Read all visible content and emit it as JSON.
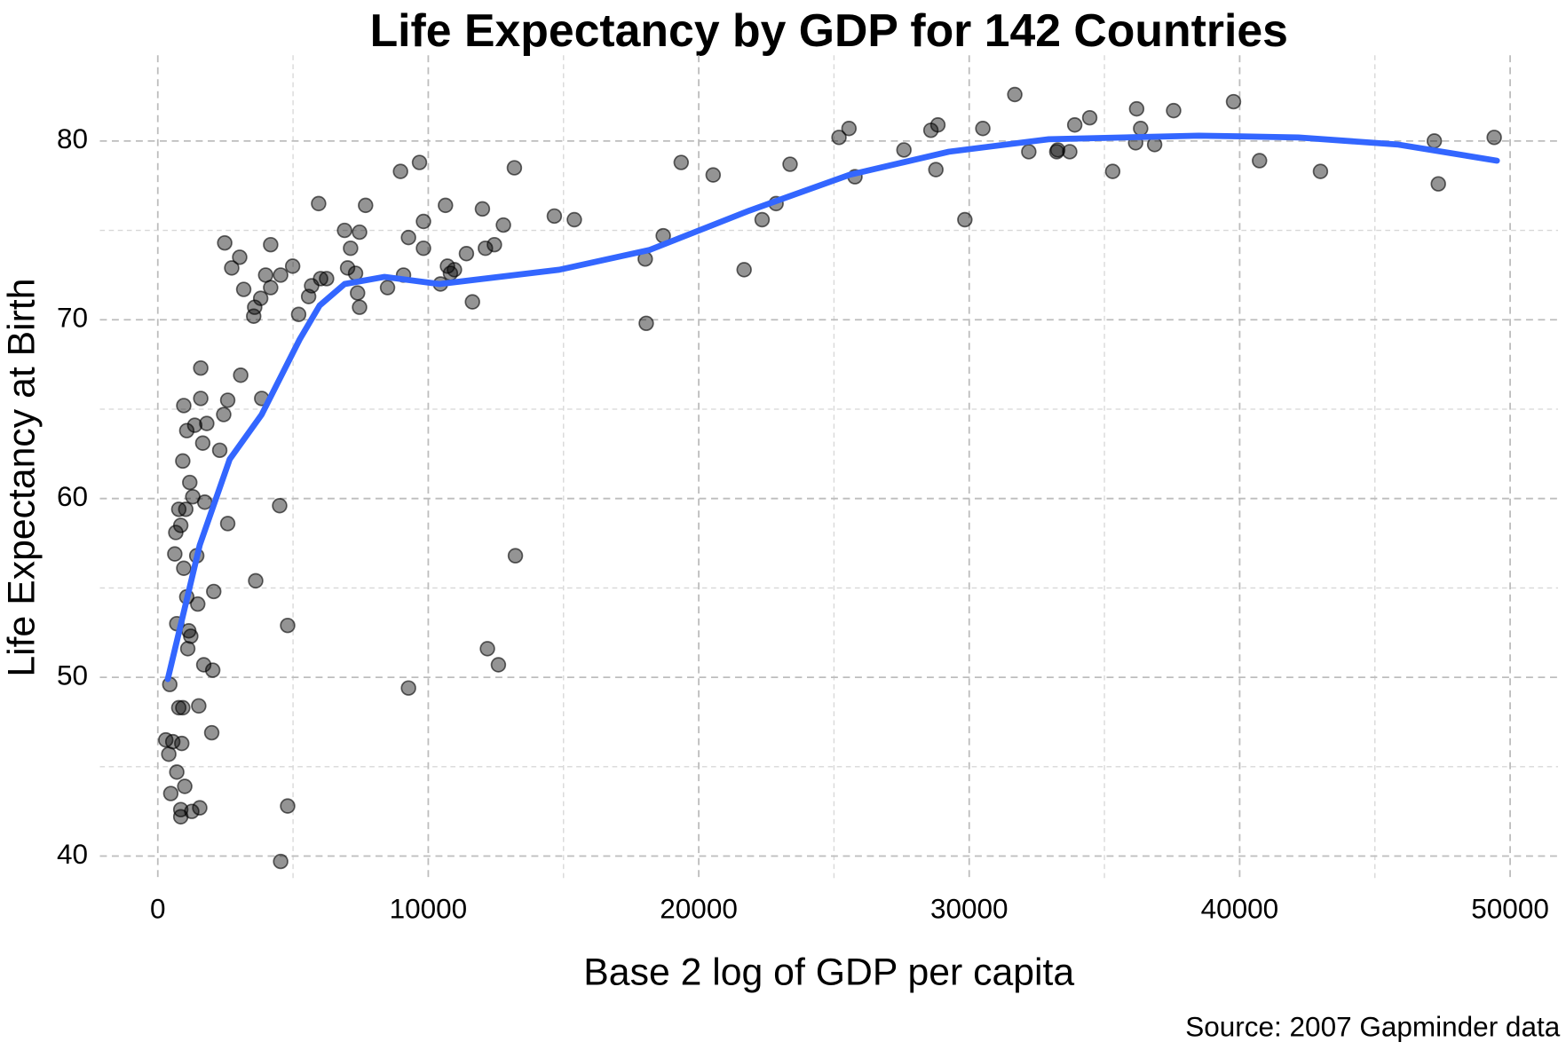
{
  "chart_data": {
    "type": "scatter",
    "title": "Life Expectancy by GDP for 142 Countries",
    "x_label": "Base 2 log of GDP per capita",
    "y_label": "Life Expectancy at Birth",
    "caption": "Source: 2007 Gapminder data",
    "color": "#000000",
    "xlim": [
      -2142,
      51770
    ],
    "ylim": [
      38.72,
      84.8
    ],
    "xticks": [
      0,
      10000,
      20000,
      30000,
      40000,
      50000
    ],
    "yticks": [
      40,
      50,
      60,
      70,
      80
    ],
    "x_minor_grid": [
      5000,
      15000,
      25000,
      35000,
      45000
    ],
    "y_minor_grid": [
      45,
      55,
      65,
      75
    ],
    "grid": true,
    "x": [
      295,
      406,
      443,
      480,
      554,
      628,
      665,
      702,
      702,
      776,
      776,
      849,
      849,
      849,
      886,
      923,
      923,
      960,
      960,
      997,
      1034,
      1071,
      1071,
      1108,
      1145,
      1182,
      1219,
      1256,
      1293,
      1366,
      1440,
      1477,
      1514,
      1551,
      1588,
      1588,
      1662,
      1699,
      1736,
      1810,
      1994,
      2031,
      2068,
      2290,
      2437,
      2474,
      2585,
      2585,
      2733,
      3028,
      3065,
      3176,
      3545,
      3582,
      3619,
      3804,
      3841,
      3988,
      4173,
      4173,
      4505,
      4542,
      4542,
      4801,
      4801,
      4986,
      5207,
      5576,
      5687,
      5946,
      6020,
      6241,
      6906,
      7017,
      7128,
      7312,
      7386,
      7460,
      7460,
      7682,
      8494,
      8974,
      9085,
      9269,
      9269,
      9675,
      9823,
      9823,
      10451,
      10636,
      10710,
      10820,
      10968,
      11411,
      11633,
      12002,
      12113,
      12187,
      12445,
      12593,
      12778,
      13184,
      13221,
      14661,
      15400,
      18022,
      18059,
      18687,
      19351,
      20533,
      21678,
      22343,
      22860,
      23377,
      25186,
      25555,
      25776,
      27587,
      28584,
      28768,
      28842,
      29839,
      30504,
      31686,
      32203,
      33237,
      33274,
      33717,
      33902,
      34456,
      35305,
      36191,
      36154,
      36339,
      36856,
      37558,
      39773,
      40734,
      42987,
      47197,
      47345,
      49411
    ],
    "values": [
      46.5,
      45.7,
      49.6,
      43.5,
      46.4,
      56.9,
      58.1,
      53.0,
      44.7,
      48.3,
      59.4,
      42.2,
      42.6,
      58.5,
      46.3,
      48.3,
      62.1,
      56.1,
      65.2,
      43.9,
      59.4,
      54.5,
      63.8,
      51.6,
      52.6,
      60.9,
      52.3,
      42.5,
      60.1,
      64.1,
      56.8,
      54.1,
      48.4,
      42.7,
      67.3,
      65.6,
      63.1,
      50.7,
      59.8,
      64.2,
      46.9,
      50.4,
      54.8,
      62.7,
      64.7,
      74.3,
      58.6,
      65.5,
      72.9,
      73.5,
      66.9,
      71.7,
      70.2,
      70.7,
      55.4,
      71.2,
      65.6,
      72.5,
      71.8,
      74.2,
      59.6,
      39.7,
      72.5,
      42.8,
      52.9,
      73.0,
      70.3,
      71.3,
      71.9,
      76.5,
      72.3,
      72.3,
      75.0,
      72.9,
      74.0,
      72.6,
      71.5,
      74.9,
      70.7,
      76.4,
      71.8,
      78.3,
      72.5,
      49.4,
      74.6,
      78.8,
      74.0,
      75.5,
      72.0,
      76.4,
      73.0,
      72.6,
      72.8,
      73.7,
      71.0,
      76.2,
      74.0,
      51.6,
      74.2,
      50.7,
      75.3,
      78.5,
      56.8,
      75.8,
      75.6,
      73.4,
      69.8,
      74.7,
      78.8,
      78.1,
      72.8,
      75.6,
      76.5,
      78.7,
      80.2,
      80.7,
      78.0,
      79.5,
      80.6,
      78.4,
      80.9,
      75.6,
      80.7,
      82.6,
      79.4,
      79.4,
      79.5,
      79.4,
      80.9,
      81.3,
      78.3,
      81.8,
      79.9,
      80.7,
      79.8,
      81.7,
      82.2,
      78.9,
      78.3,
      80.0,
      77.6,
      80.2
    ],
    "trend": {
      "color": "#3366ff",
      "x": [
        369,
        1551,
        2659,
        3841,
        5244,
        5983,
        6906,
        8383,
        10414,
        14846,
        18170,
        21862,
        25555,
        29248,
        32941,
        38480,
        42173,
        45866,
        49511
      ],
      "values": [
        49.9,
        57.4,
        62.2,
        64.7,
        68.9,
        70.8,
        72.0,
        72.4,
        72.0,
        72.8,
        73.9,
        76.1,
        78.1,
        79.4,
        80.1,
        80.3,
        80.2,
        79.8,
        78.9
      ]
    }
  }
}
